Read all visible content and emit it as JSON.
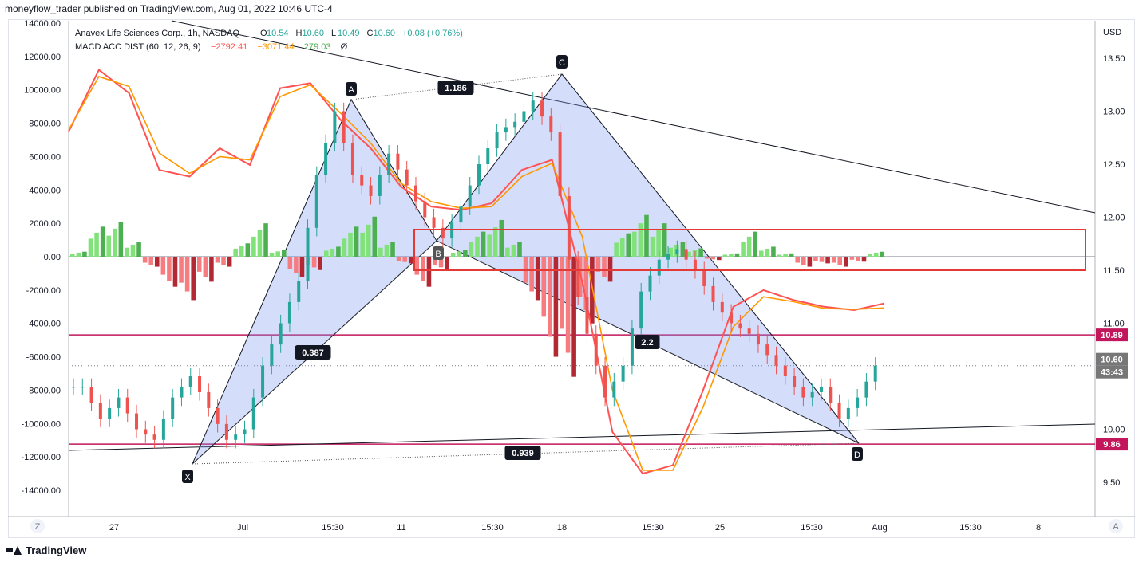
{
  "attribution": "moneyflow_trader published on TradingView.com, Aug 01, 2022 10:46 UTC-4",
  "footer_brand": "TradingView",
  "currency_label": "USD",
  "legend": {
    "symbol_line": "Anavex Life Sciences Corp., 1h, NASDAQ",
    "ohlc": [
      {
        "key": "O",
        "val": "10.54"
      },
      {
        "key": "H",
        "val": "10.60"
      },
      {
        "key": "L",
        "val": "10.49"
      },
      {
        "key": "C",
        "val": "10.60"
      },
      {
        "key": "",
        "val": "+0.08 (+0.76%)"
      }
    ],
    "macd_name": "MACD ACC DIST (60, 12, 26, 9)",
    "macd_values": [
      "−2792.41",
      "−3071.44",
      "279.03",
      "Ø"
    ],
    "colors": {
      "up": "#26a69a",
      "down": "#ef5350",
      "macd": "#ff5252",
      "signal": "#ff9800",
      "hist": "#4caf50"
    }
  },
  "left_axis_labels": [
    "14000.00",
    "12000.00",
    "10000.00",
    "8000.00",
    "6000.00",
    "4000.00",
    "2000.00",
    "0.00",
    "-2000.00",
    "-4000.00",
    "-6000.00",
    "-8000.00",
    "-10000.00",
    "-12000.00",
    "-14000.00"
  ],
  "right_axis_labels": [
    "13.50",
    "13.00",
    "12.50",
    "12.00",
    "11.50",
    "11.00",
    "10.00",
    "9.50"
  ],
  "right_badges": [
    {
      "text": "10.89",
      "color": "#c2185b"
    },
    {
      "text": "10.60",
      "color": "#777777"
    },
    {
      "text": "43:43",
      "color": "#777777"
    },
    {
      "text": "9.86",
      "color": "#c2185b"
    }
  ],
  "bottom_axis_labels": [
    "27",
    "Jul",
    "15:30",
    "11",
    "15:30",
    "18",
    "15:30",
    "25",
    "15:30",
    "Aug",
    "15:30",
    "8"
  ],
  "corner_buttons": {
    "left": "Z",
    "right": "A"
  },
  "pattern_points": [
    "X",
    "A",
    "B",
    "C",
    "D"
  ],
  "ratios": [
    "1.186",
    "0.387",
    "2.2",
    "0.939"
  ],
  "chart_data": {
    "type": "candlestick",
    "title": "Anavex Life Sciences Corp., 1h, NASDAQ",
    "y_price_range": [
      9.3,
      14.0
    ],
    "y_macd_range": [
      -16000,
      14000
    ],
    "levels": [
      10.89,
      9.86
    ],
    "last_price": 10.6,
    "pattern": {
      "X": 9.65,
      "A": 13.25,
      "B": 11.8,
      "C": 13.35,
      "D": 9.9
    },
    "closes": [
      10.4,
      10.1,
      10.3,
      10.0,
      9.9,
      10.3,
      10.5,
      10.2,
      9.9,
      10.0,
      10.6,
      11.0,
      11.4,
      12.4,
      13.0,
      12.4,
      12.2,
      12.6,
      12.3,
      12.0,
      11.8,
      12.1,
      12.5,
      12.8,
      12.9,
      13.1,
      12.8,
      11.6,
      10.9,
      10.3,
      10.6,
      11.3,
      11.6,
      11.7,
      11.5,
      11.2,
      11.0,
      10.9,
      10.7,
      10.5,
      10.3,
      10.4,
      10.1,
      10.3,
      10.6
    ],
    "macd_hist": [
      300,
      1800,
      2100,
      900,
      -600,
      -1800,
      -2600,
      -1500,
      -600,
      800,
      2000,
      400,
      -1200,
      -800,
      600,
      1800,
      2400,
      900,
      -400,
      -1800,
      -800,
      400,
      1500,
      2200,
      900,
      -2600,
      -6000,
      -7200,
      -4000,
      -1500,
      1400,
      2500,
      2000,
      900,
      500,
      -200,
      200,
      1500,
      600,
      200,
      -600,
      -400,
      -600,
      -300,
      300
    ],
    "macd_line": [
      7500,
      11200,
      9800,
      5200,
      4800,
      6500,
      5500,
      10100,
      10400,
      8200,
      6500,
      4200,
      3000,
      2800,
      3200,
      5200,
      5800,
      -1500,
      -10500,
      -13000,
      -12500,
      -8000,
      -3000,
      -2000,
      -2600,
      -3000,
      -3200,
      -2800
    ],
    "signal_line": [
      7600,
      10800,
      10200,
      6200,
      5000,
      6000,
      5800,
      9600,
      10300,
      8600,
      6800,
      4400,
      3300,
      2900,
      3000,
      4800,
      5600,
      1200,
      -8000,
      -12800,
      -12800,
      -9000,
      -4200,
      -2400,
      -2700,
      -3100,
      -3150,
      -3071
    ]
  }
}
